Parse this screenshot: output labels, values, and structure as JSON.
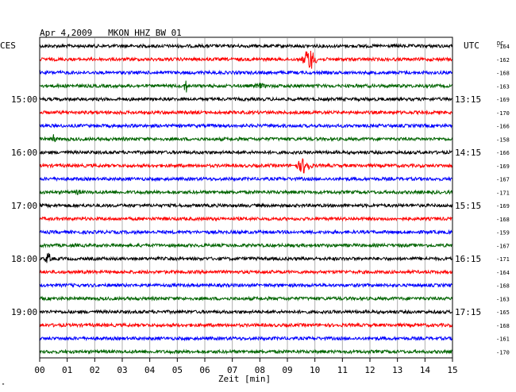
{
  "header": {
    "title": "Apr 4,2009   MKON HHZ BW 01",
    "left_label": "CES",
    "right_label": "UTC",
    "dc_label": "DC"
  },
  "footer": {
    "xlabel": "Zeit [min]",
    "corner_mark": "\""
  },
  "colors": {
    "palette": [
      "#000000",
      "#ff0000",
      "#0000ff",
      "#006400"
    ],
    "grid": "#b0b0b0",
    "frame": "#000000"
  },
  "chart_data": {
    "type": "line",
    "title": "Apr 4,2009   MKON HHZ BW 01",
    "xlabel": "Zeit [min]",
    "ylabel": "",
    "x_ticks": [
      "00",
      "01",
      "02",
      "03",
      "04",
      "05",
      "06",
      "07",
      "08",
      "09",
      "10",
      "11",
      "12",
      "13",
      "14",
      "15"
    ],
    "xlim": [
      0,
      15
    ],
    "trace_minutes": 15,
    "traces_per_hour": 4,
    "color_cycle": [
      "black",
      "red",
      "blue",
      "green"
    ],
    "left_time_labels": [
      {
        "row": 4,
        "text": "15:00"
      },
      {
        "row": 8,
        "text": "16:00"
      },
      {
        "row": 12,
        "text": "17:00"
      },
      {
        "row": 16,
        "text": "18:00"
      },
      {
        "row": 20,
        "text": "19:00"
      }
    ],
    "right_time_labels": [
      {
        "row": 4,
        "text": "13:15"
      },
      {
        "row": 8,
        "text": "14:15"
      },
      {
        "row": 12,
        "text": "15:15"
      },
      {
        "row": 16,
        "text": "16:15"
      },
      {
        "row": 20,
        "text": "17:15"
      }
    ],
    "dc_offsets": [
      "-164",
      "-162",
      "-168",
      "-163",
      "-169",
      "-170",
      "-166",
      "-158",
      "-166",
      "-169",
      "-167",
      "-171",
      "-169",
      "-168",
      "-159",
      "-167",
      "-171",
      "-164",
      "-168",
      "-163",
      "-165",
      "-168",
      "-161",
      "-170"
    ],
    "events": [
      {
        "row": 1,
        "minute": 9.8,
        "amplitude": 16,
        "duration_min": 0.35
      },
      {
        "row": 3,
        "minute": 5.3,
        "amplitude": 12,
        "duration_min": 0.1
      },
      {
        "row": 3,
        "minute": 8.0,
        "amplitude": 4,
        "duration_min": 0.5
      },
      {
        "row": 7,
        "minute": 0.5,
        "amplitude": 8,
        "duration_min": 0.12
      },
      {
        "row": 9,
        "minute": 9.6,
        "amplitude": 11,
        "duration_min": 0.4
      },
      {
        "row": 11,
        "minute": 1.4,
        "amplitude": 4,
        "duration_min": 0.3
      },
      {
        "row": 16,
        "minute": 0.3,
        "amplitude": 9,
        "duration_min": 0.18
      }
    ]
  }
}
